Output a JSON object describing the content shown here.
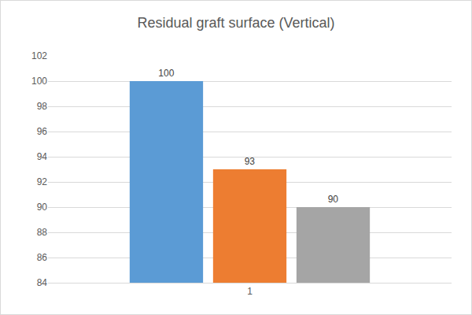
{
  "chart_data": {
    "type": "bar",
    "title": "Residual graft surface (Vertical)",
    "categories": [
      "1"
    ],
    "series": [
      {
        "color": "#5b9bd5",
        "values": [
          100
        ]
      },
      {
        "color": "#ed7d31",
        "values": [
          93
        ]
      },
      {
        "color": "#a5a5a5",
        "values": [
          90
        ]
      }
    ],
    "ylim": [
      84,
      102
    ],
    "yticks": [
      84,
      86,
      88,
      90,
      92,
      94,
      96,
      98,
      100,
      102
    ],
    "grid": true,
    "data_labels": true
  }
}
